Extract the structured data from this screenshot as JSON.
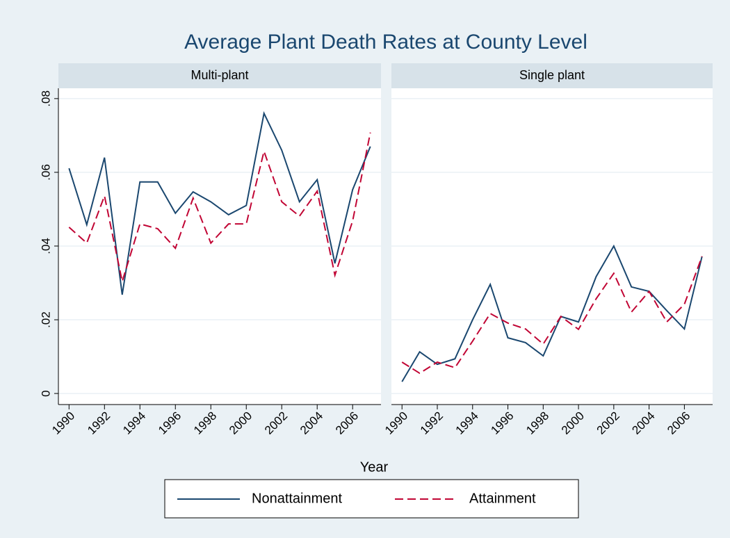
{
  "title": "Average Plant Death Rates at County Level",
  "xlabel": "Year",
  "legend": "bottom",
  "chart_data": [
    {
      "type": "line",
      "title": "Multi-plant",
      "x": [
        1990,
        1991,
        1992,
        1993,
        1994,
        1995,
        1996,
        1997,
        1998,
        1999,
        2000,
        2001,
        2002,
        2003,
        2004,
        2005,
        2006,
        2007
      ],
      "xlim": [
        1989.4,
        2007.6
      ],
      "xticks": [
        1990,
        1992,
        1994,
        1996,
        1998,
        2000,
        2002,
        2004,
        2006
      ],
      "ylim": [
        -0.003,
        0.0828
      ],
      "yticks": [
        0,
        {
          "value": 0.02,
          "label": ".02"
        },
        {
          "value": 0.04,
          "label": ".04"
        },
        {
          "value": 0.06,
          "label": ".06"
        },
        {
          "value": 0.08,
          "label": ".08"
        }
      ],
      "grid": true,
      "series": [
        {
          "name": "Nonattainment",
          "color": "#1a476f",
          "dash": false,
          "values": [
            0.0611,
            0.0458,
            0.064,
            0.0268,
            0.0574,
            0.0574,
            0.0489,
            0.0547,
            0.052,
            0.0485,
            0.051,
            0.076,
            0.066,
            0.052,
            0.058,
            0.0353,
            0.0553,
            0.067
          ]
        },
        {
          "name": "Attainment",
          "color": "#c10534",
          "dash": true,
          "values": [
            0.0451,
            0.0408,
            0.0536,
            0.0304,
            0.046,
            0.0447,
            0.0394,
            0.053,
            0.0408,
            0.046,
            0.046,
            0.0657,
            0.052,
            0.0481,
            0.0549,
            0.0321,
            0.0468,
            0.0708
          ]
        }
      ]
    },
    {
      "type": "line",
      "title": "Single plant",
      "x": [
        1990,
        1991,
        1992,
        1993,
        1994,
        1995,
        1996,
        1997,
        1998,
        1999,
        2000,
        2001,
        2002,
        2003,
        2004,
        2005,
        2006,
        2007
      ],
      "xlim": [
        1989.4,
        2007.6
      ],
      "xticks": [
        1990,
        1992,
        1994,
        1996,
        1998,
        2000,
        2002,
        2004,
        2006
      ],
      "ylim": [
        -0.003,
        0.0828
      ],
      "yticks": [
        0,
        0.02,
        0.04,
        0.06,
        0.08
      ],
      "grid": true,
      "series": [
        {
          "name": "Nonattainment",
          "color": "#1a476f",
          "dash": false,
          "values": [
            0.0032,
            0.0113,
            0.0079,
            0.0094,
            0.02,
            0.0296,
            0.0151,
            0.0138,
            0.0102,
            0.0209,
            0.0194,
            0.0317,
            0.04,
            0.0289,
            0.0277,
            0.0225,
            0.0175,
            0.0372
          ]
        },
        {
          "name": "Attainment",
          "color": "#c10534",
          "dash": true,
          "values": [
            0.0085,
            0.0055,
            0.0085,
            0.007,
            0.0142,
            0.0217,
            0.0191,
            0.0175,
            0.0134,
            0.0209,
            0.0174,
            0.0257,
            0.0326,
            0.0221,
            0.0277,
            0.0194,
            0.0242,
            0.0372
          ]
        }
      ]
    }
  ]
}
